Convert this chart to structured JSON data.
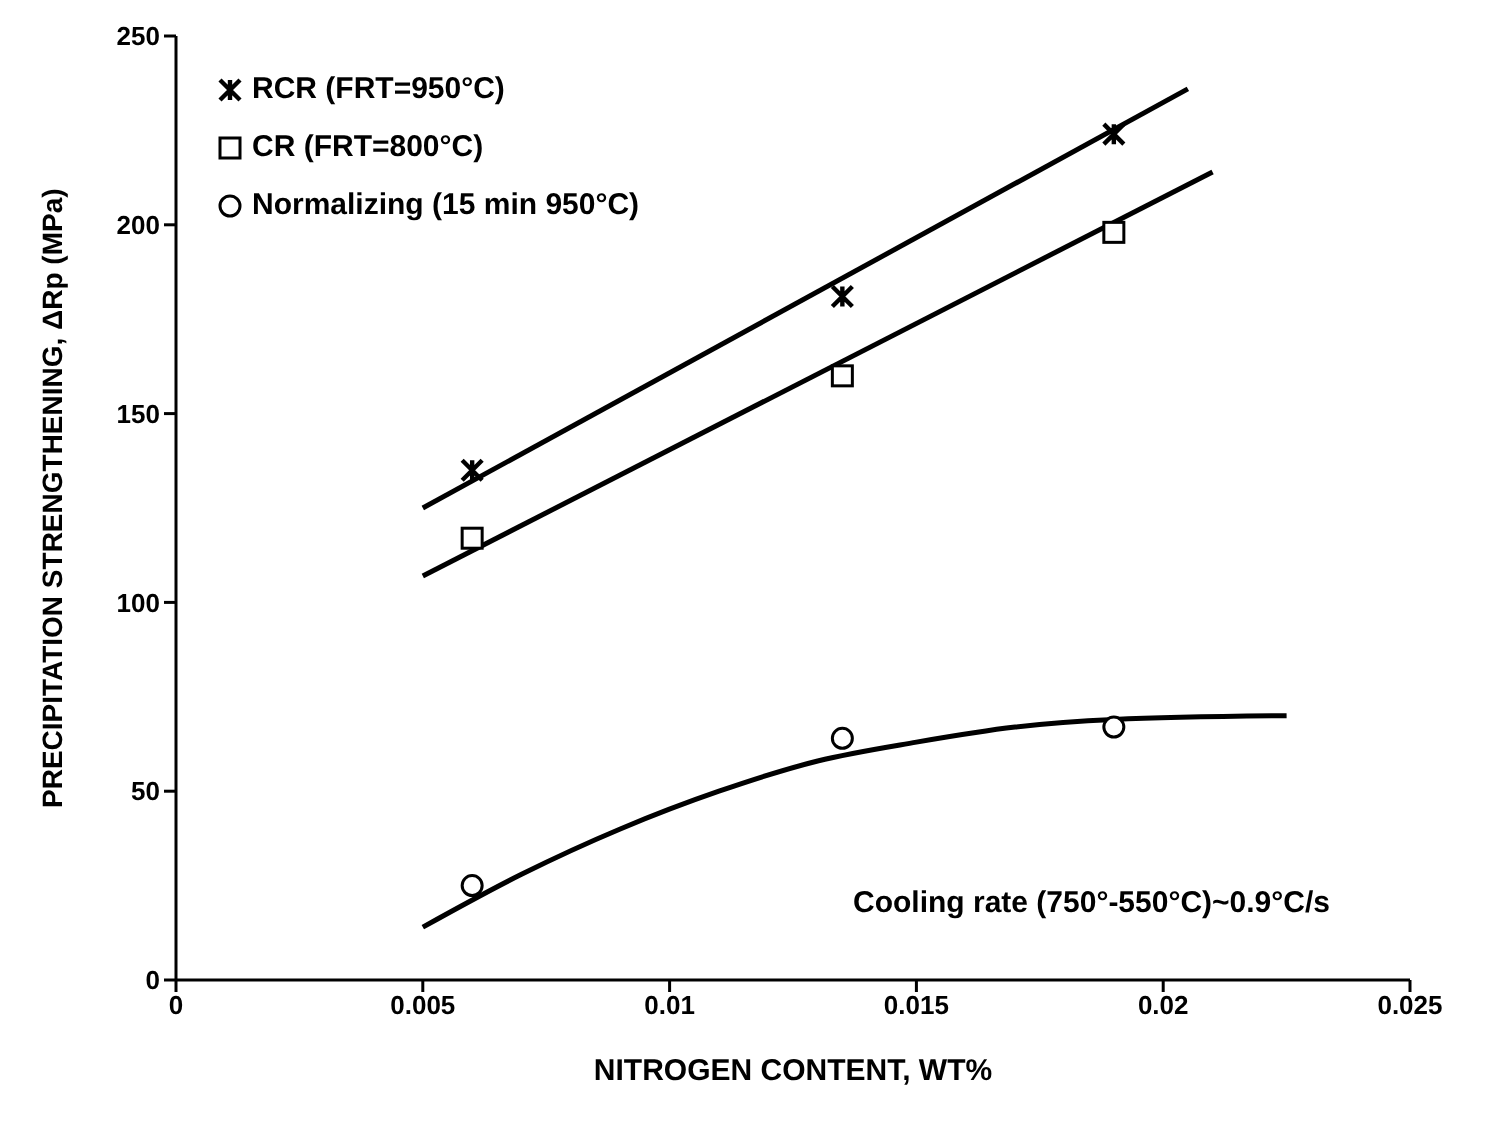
{
  "chart_data": {
    "type": "scatter",
    "xlabel": "NITROGEN CONTENT, WT%",
    "ylabel": "PRECIPITATION STRENGTHENING, ΔRp (MPa)",
    "xlim": [
      0,
      0.025
    ],
    "xticks": [
      0,
      0.005,
      0.01,
      0.015,
      0.02,
      0.025
    ],
    "ylim": [
      0,
      250
    ],
    "yticks": [
      0,
      50,
      100,
      150,
      200,
      250
    ],
    "grid": false,
    "legend": "top left",
    "series": [
      {
        "name": "RCR (FRT=950°C)",
        "color": "#000000",
        "marker": "cross",
        "x": [
          0.006,
          0.0135,
          0.019
        ],
        "values": [
          135,
          181,
          224
        ]
      },
      {
        "name": "CR (FRT=800°C)",
        "color": "#000000",
        "marker": "square",
        "x": [
          0.006,
          0.0135,
          0.019
        ],
        "values": [
          117,
          160,
          198
        ]
      },
      {
        "name": "Normalizing (15 min 950°C)",
        "color": "#000000",
        "marker": "circle",
        "x": [
          0.006,
          0.0135,
          0.019
        ],
        "values": [
          25,
          64,
          67
        ]
      },
      {
        "type": "line",
        "color": "#000000",
        "marker": "none",
        "x": [
          0.005,
          0.0205
        ],
        "values": [
          125,
          236
        ]
      },
      {
        "type": "line",
        "color": "#000000",
        "marker": "none",
        "x": [
          0.005,
          0.021
        ],
        "values": [
          107,
          214
        ]
      },
      {
        "type": "line",
        "color": "#000000",
        "marker": "none",
        "x": [
          0.005,
          0.007,
          0.009,
          0.011,
          0.013,
          0.015,
          0.017,
          0.019,
          0.0225
        ],
        "values": [
          14,
          28,
          40,
          50,
          58,
          63,
          67,
          69,
          70
        ]
      }
    ],
    "annotations": [
      "Cooling rate (750°-550°C)~0.9°C/s"
    ]
  }
}
